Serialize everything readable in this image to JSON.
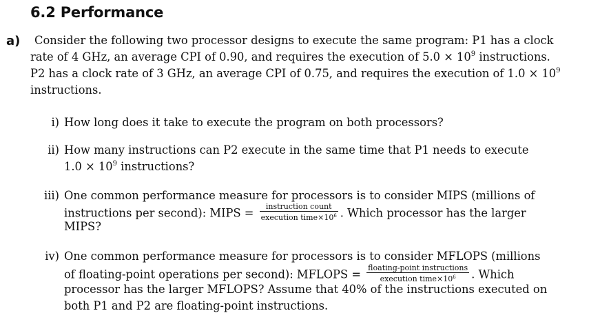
{
  "section": {
    "number": "6.2",
    "title": "6.2 Performance"
  },
  "part_a": {
    "marker": "a)",
    "intro": {
      "line1": "Consider the following two processor designs to execute the same program: P1 has a clock",
      "line2_pre": "rate of 4 GHz, an average CPI of 0.90, and requires the execution of 5.0 × 10",
      "line2_exp": "9",
      "line2_post": " instructions.",
      "line3_pre": "P2 has a clock rate of 3 GHz, an average CPI of 0.75, and requires the execution of 1.0 × 10",
      "line3_exp": "9",
      "line4": "instructions."
    },
    "questions": [
      {
        "marker": "i)",
        "line1": "How long does it take to execute the program on both processors?"
      },
      {
        "marker": "ii)",
        "line1": "How many instructions can P2 execute in the same time that P1 needs to execute",
        "line2_pre": "1.0 × 10",
        "line2_exp": "9",
        "line2_post": " instructions?"
      },
      {
        "marker": "iii)",
        "line1": "One common performance measure for processors is to consider MIPS (millions of",
        "line2_pre": "instructions per second): MIPS =",
        "frac_num": "instruction count",
        "frac_den": "execution time×10",
        "frac_den_exp": "6",
        "line2_post": ".  Which processor has the larger",
        "line3": "MIPS?"
      },
      {
        "marker": "iv)",
        "line1": "One common performance measure for processors is to consider MFLOPS (millions",
        "line2_pre": "of floating-point operations per second): MFLOPS =",
        "frac_num": "floating-point instructions",
        "frac_den": "execution time×10",
        "frac_den_exp": "6",
        "line2_post": ".  Which",
        "line3": "processor has the larger MFLOPS? Assume that 40% of the instructions executed on",
        "line4": "both P1 and P2 are floating-point instructions."
      }
    ]
  }
}
